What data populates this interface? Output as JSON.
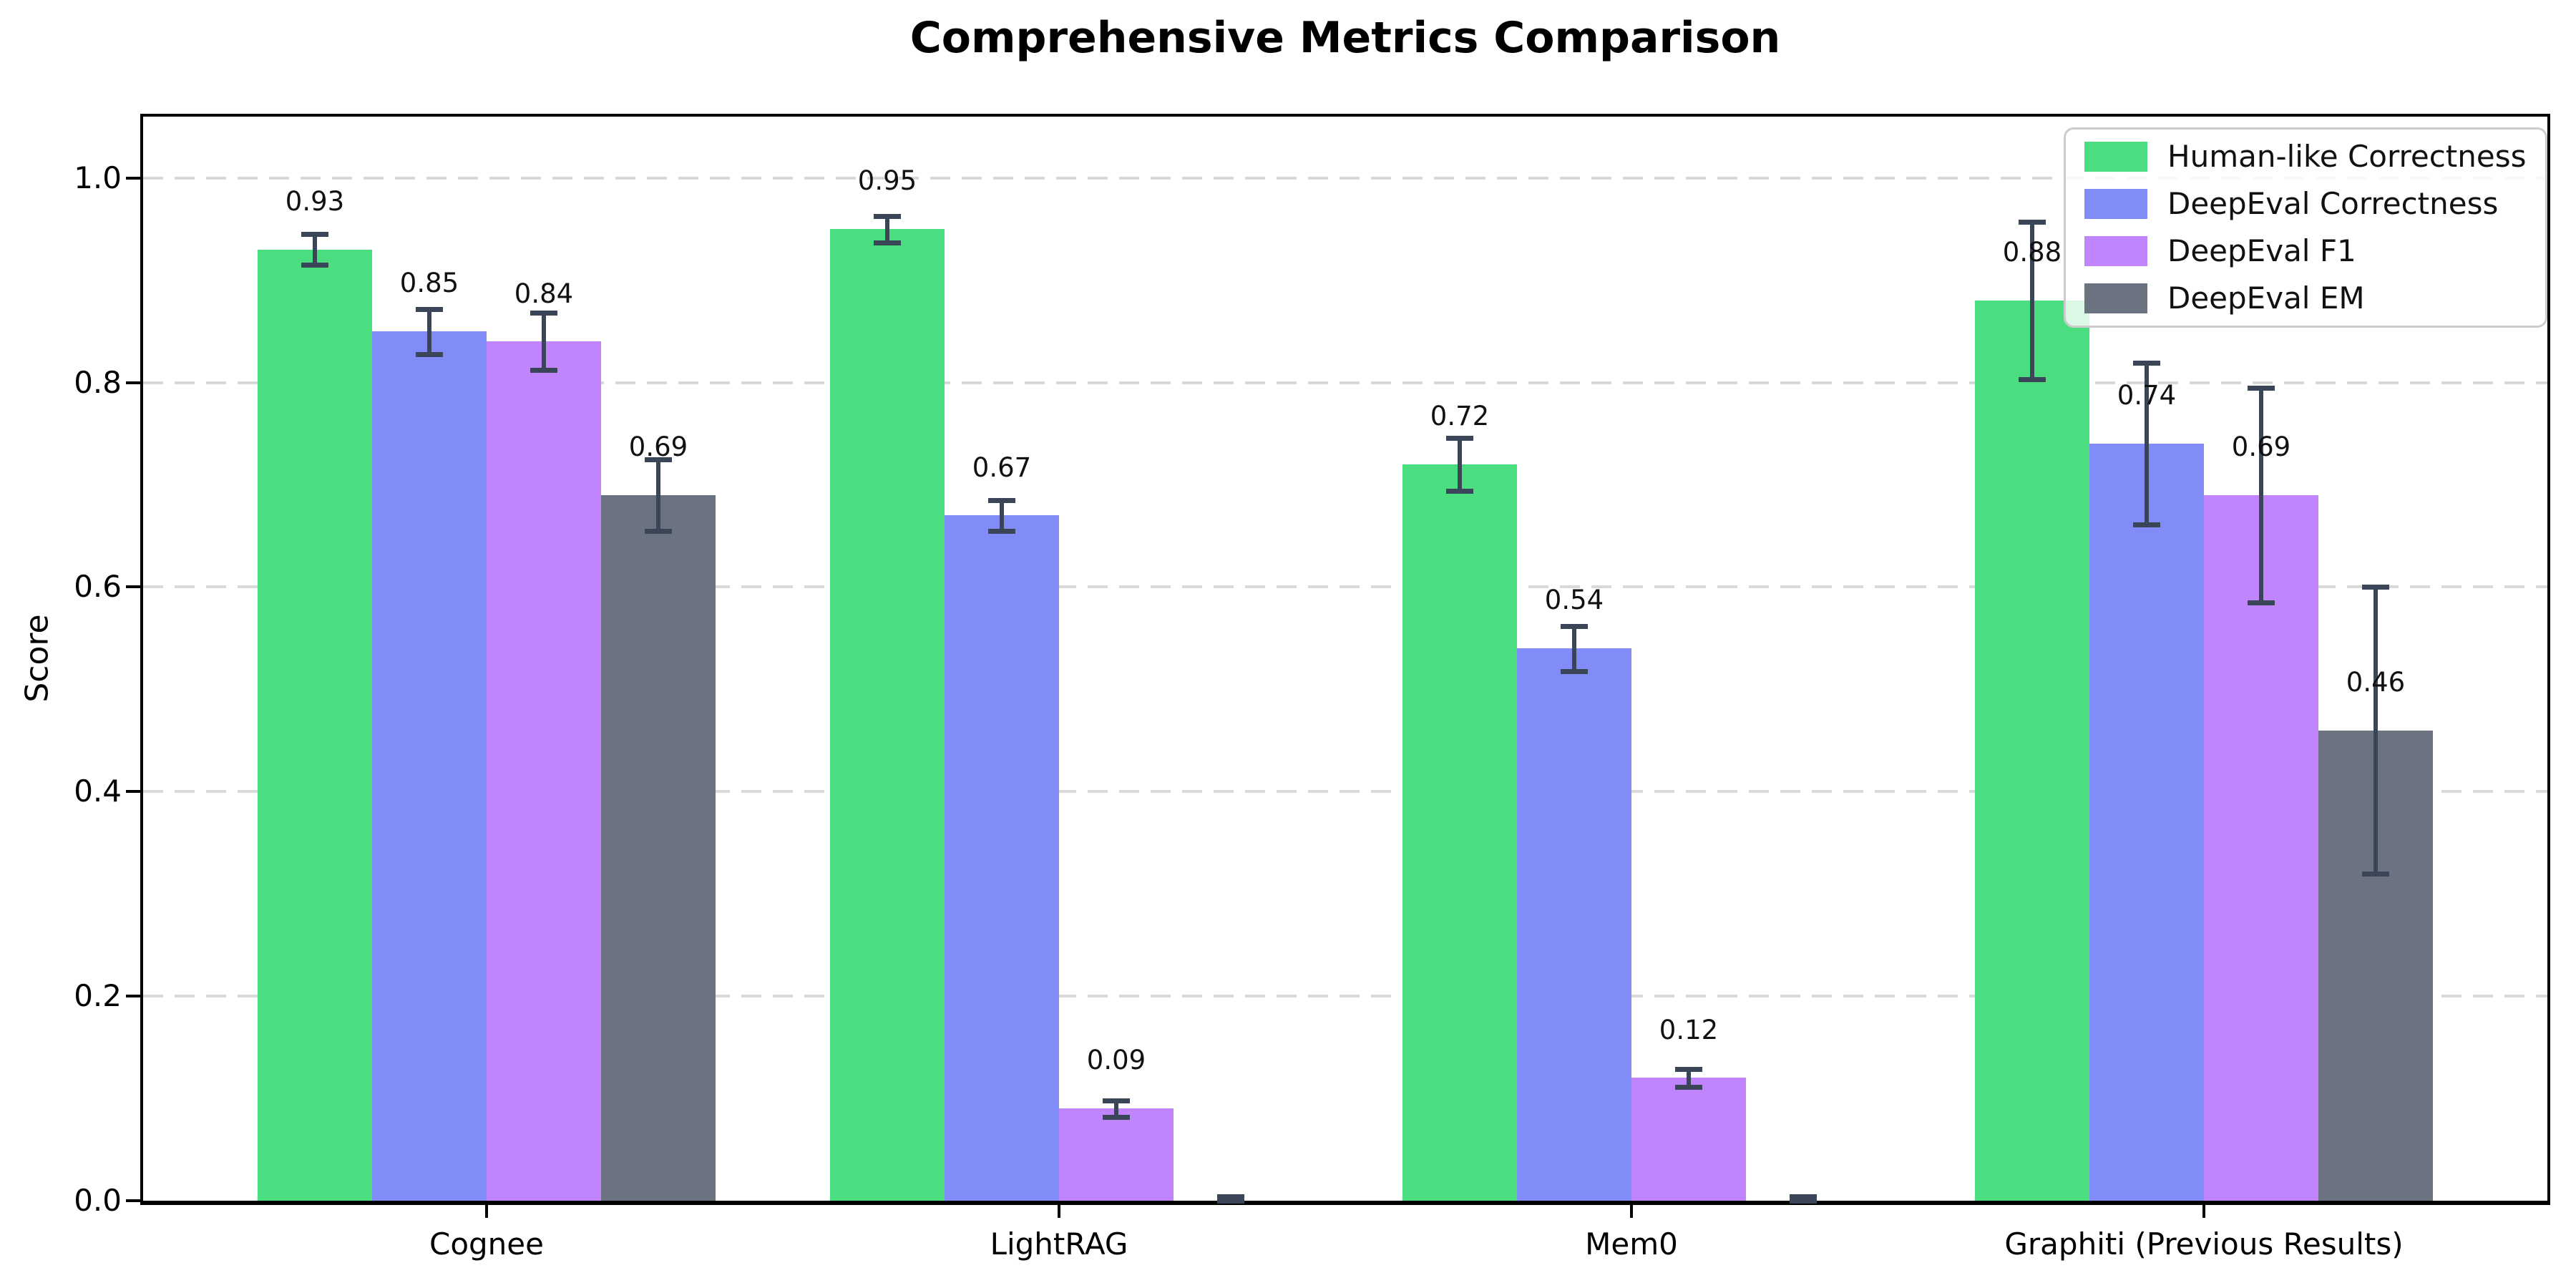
{
  "chart_data": {
    "type": "bar",
    "title": "Comprehensive Metrics Comparison",
    "ylabel": "Score",
    "xlabel": "",
    "categories": [
      "Cognee",
      "LightRAG",
      "Mem0",
      "Graphiti (Previous Results)"
    ],
    "series": [
      {
        "name": "Human-like Correctness",
        "color": "#4ade80",
        "values": [
          0.93,
          0.95,
          0.72,
          0.88
        ],
        "errors": [
          0.015,
          0.013,
          0.026,
          0.077
        ],
        "labels": [
          "0.93",
          "0.95",
          "0.72",
          "0.88"
        ]
      },
      {
        "name": "DeepEval Correctness",
        "color": "#818cf8",
        "values": [
          0.85,
          0.67,
          0.54,
          0.74
        ],
        "errors": [
          0.022,
          0.015,
          0.022,
          0.079
        ],
        "labels": [
          "0.85",
          "0.67",
          "0.54",
          "0.74"
        ]
      },
      {
        "name": "DeepEval F1",
        "color": "#c084fc",
        "values": [
          0.84,
          0.09,
          0.12,
          0.69
        ],
        "errors": [
          0.028,
          0.008,
          0.009,
          0.105
        ],
        "labels": [
          "0.84",
          "0.09",
          "0.12",
          "0.69"
        ]
      },
      {
        "name": "DeepEval EM",
        "color": "#6b7280",
        "values": [
          0.69,
          0.0,
          0.0,
          0.46
        ],
        "errors": [
          0.035,
          0.004,
          0.004,
          0.14
        ],
        "labels": [
          "0.69",
          "",
          "",
          "0.46"
        ]
      }
    ],
    "yticks": [
      0.0,
      0.2,
      0.4,
      0.6,
      0.8,
      1.0
    ],
    "ytick_labels": [
      "0.0",
      "0.2",
      "0.4",
      "0.6",
      "0.8",
      "1.0"
    ],
    "ylim": [
      0,
      1.06
    ],
    "xlim": [
      -0.6,
      3.6
    ],
    "bar_width": 0.2,
    "grid": "horizontal-dashed",
    "legend_position": "upper-right",
    "colors": {
      "error_bar": "#3b4558",
      "grid": "#d9d9d9",
      "legend_border": "#cccccc",
      "spine": "#000000"
    }
  }
}
